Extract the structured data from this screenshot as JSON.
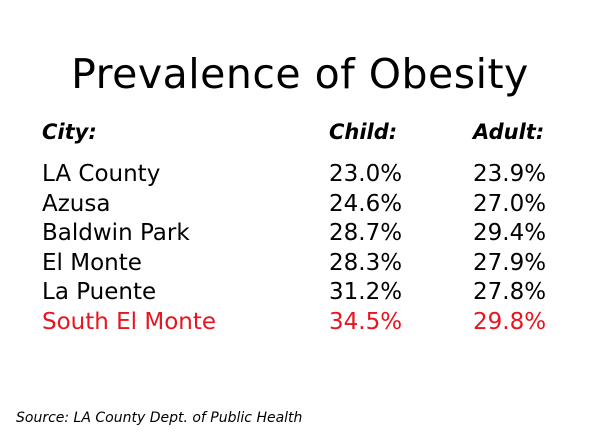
{
  "title": "Prevalence of Obesity",
  "headers": {
    "city": "City:",
    "child": "Child:",
    "adult": "Adult:"
  },
  "rows": [
    {
      "city": "LA County",
      "child": "23.0%",
      "adult": "23.9%"
    },
    {
      "city": "Azusa",
      "child": "24.6%",
      "adult": "27.0%"
    },
    {
      "city": "Baldwin Park",
      "child": "28.7%",
      "adult": "29.4%"
    },
    {
      "city": "El Monte",
      "child": "28.3%",
      "adult": "27.9%"
    },
    {
      "city": "La Puente",
      "child": "31.2%",
      "adult": "27.8%"
    },
    {
      "city": "South El Monte",
      "child": "34.5%",
      "adult": "29.8%"
    }
  ],
  "highlight_color": "#e8141e",
  "source": "Source: LA County Dept. of Public Health"
}
